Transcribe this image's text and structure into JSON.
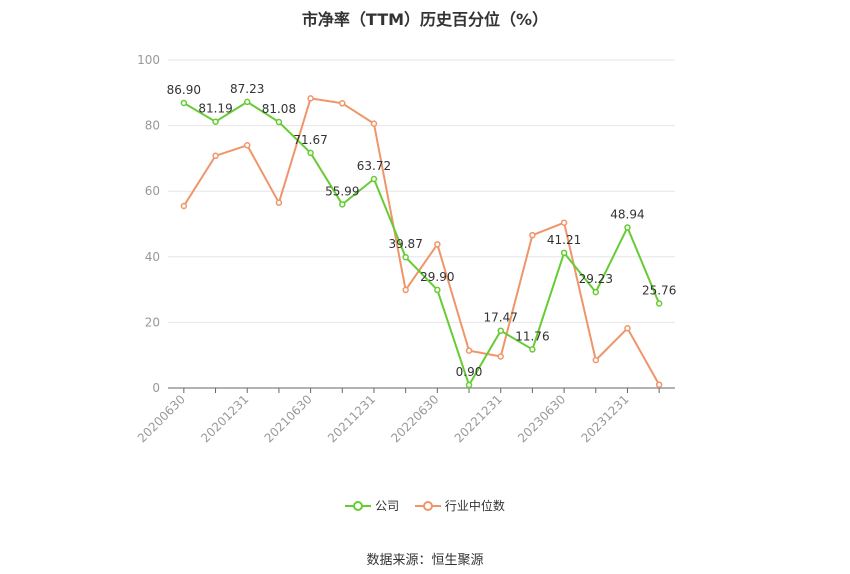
{
  "title": "市净率（TTM）历史百分位（%）",
  "source": "数据来源：恒生聚源",
  "legend": {
    "company": "公司",
    "industry": "行业中位数"
  },
  "colors": {
    "company": "#66cc33",
    "industry": "#f0956a",
    "grid": "#e6e6e6",
    "axis": "#999999",
    "text": "#333333"
  },
  "chart_data": {
    "type": "line",
    "title": "市净率（TTM）历史百分位（%）",
    "xlabel": "",
    "ylabel": "",
    "ylim": [
      0,
      100
    ],
    "yticks": [
      0,
      20,
      40,
      60,
      80,
      100
    ],
    "x": [
      "20200630",
      "20200930",
      "20201231",
      "20210331",
      "20210630",
      "20210930",
      "20211231",
      "20220331",
      "20220630",
      "20220930",
      "20221231",
      "20230331",
      "20230630",
      "20230930",
      "20231231",
      "20240331"
    ],
    "xtick_labels": [
      "20200630",
      "20201231",
      "20210630",
      "20211231",
      "20220630",
      "20221231",
      "20230630",
      "20231231"
    ],
    "grid": true,
    "legend_position": "bottom",
    "series": [
      {
        "name": "公司",
        "values": [
          86.9,
          81.19,
          87.23,
          81.08,
          71.67,
          55.99,
          63.72,
          39.87,
          29.9,
          0.9,
          17.47,
          11.76,
          41.21,
          29.23,
          48.94,
          25.76
        ],
        "labels": [
          "86.90",
          "81.19",
          "87.23",
          "81.08",
          "71.67",
          "55.99",
          "63.72",
          "39.87",
          "29.90",
          "0.90",
          "17.47",
          "11.76",
          "41.21",
          "29.23",
          "48.94",
          "25.76"
        ]
      },
      {
        "name": "行业中位数",
        "values": [
          55.5,
          70.8,
          74.0,
          56.5,
          88.3,
          86.8,
          80.6,
          29.9,
          43.8,
          11.4,
          9.6,
          46.6,
          50.4,
          8.5,
          18.2,
          1.0
        ]
      }
    ]
  }
}
